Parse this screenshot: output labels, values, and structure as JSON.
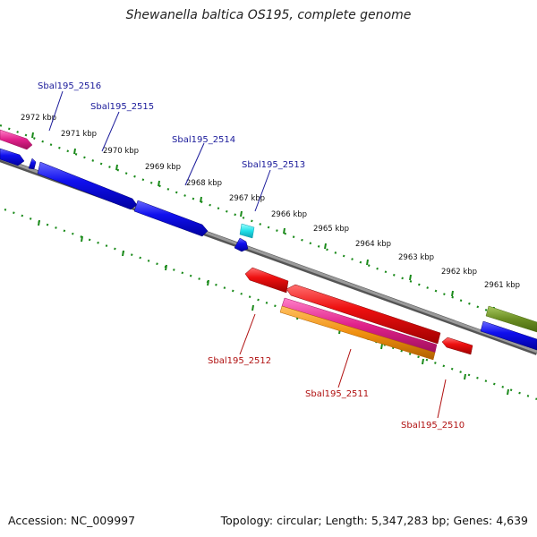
{
  "title": "Shewanella baltica OS195, complete genome",
  "footer": {
    "accession": "Accession: NC_009997",
    "summary": "Topology: circular; Length: 5,347,283 bp; Genes: 4,639"
  },
  "scale_labels": [
    "2972 kbp",
    "2971 kbp",
    "2970 kbp",
    "2969 kbp",
    "2968 kbp",
    "2967 kbp",
    "2966 kbp",
    "2965 kbp",
    "2964 kbp",
    "2963 kbp",
    "2962 kbp",
    "2961 kbp"
  ],
  "gene_labels_top": [
    "Sbal195_2516",
    "Sbal195_2515",
    "Sbal195_2514",
    "Sbal195_2513"
  ],
  "gene_labels_bottom": [
    "Sbal195_2512",
    "Sbal195_2511",
    "Sbal195_2510"
  ],
  "colors": {
    "forward_gene": "#1010e0",
    "reverse_gene": "#e01010",
    "pink_feature": "#e0208a",
    "orange_feature": "#f09010",
    "cyan_feature": "#20e0e8",
    "olive_feature": "#6b8e23",
    "backbone": "#808080",
    "tick": "#1a8a1a",
    "label_forward": "#1a1a9a",
    "label_reverse": "#b01010"
  }
}
